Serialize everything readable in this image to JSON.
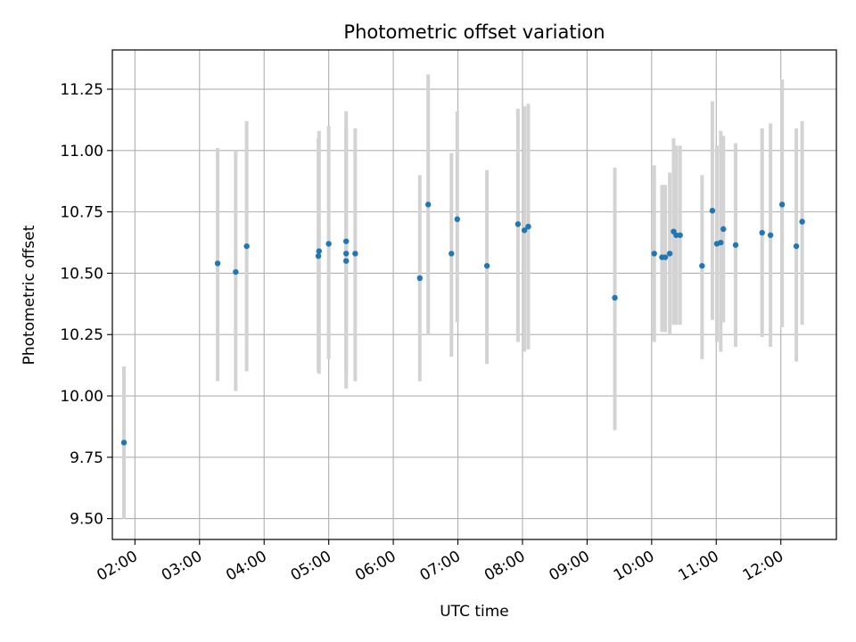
{
  "chart_data": {
    "type": "scatter",
    "title": "Photometric offset variation",
    "xlabel": "UTC time",
    "ylabel": "Photometric offset",
    "xlim": [
      1.65,
      12.86
    ],
    "ylim": [
      9.415,
      11.41
    ],
    "grid": true,
    "x_ticks": [
      {
        "value": 2,
        "label": "02:00"
      },
      {
        "value": 3,
        "label": "03:00"
      },
      {
        "value": 4,
        "label": "04:00"
      },
      {
        "value": 5,
        "label": "05:00"
      },
      {
        "value": 6,
        "label": "06:00"
      },
      {
        "value": 7,
        "label": "07:00"
      },
      {
        "value": 8,
        "label": "08:00"
      },
      {
        "value": 9,
        "label": "09:00"
      },
      {
        "value": 10,
        "label": "10:00"
      },
      {
        "value": 11,
        "label": "11:00"
      },
      {
        "value": 12,
        "label": "12:00"
      }
    ],
    "y_ticks": [
      {
        "value": 9.5,
        "label": "9.50"
      },
      {
        "value": 9.75,
        "label": "9.75"
      },
      {
        "value": 10.0,
        "label": "10.00"
      },
      {
        "value": 10.25,
        "label": "10.25"
      },
      {
        "value": 10.5,
        "label": "10.50"
      },
      {
        "value": 10.75,
        "label": "10.75"
      },
      {
        "value": 11.0,
        "label": "11.00"
      },
      {
        "value": 11.25,
        "label": "11.25"
      }
    ],
    "colors": {
      "point": "#1f77b4",
      "errorbar": "#d3d3d3",
      "grid": "#b0b0b0",
      "axes": "#000000"
    },
    "points": [
      {
        "x": 1.83,
        "y": 9.81,
        "ylow": 9.5,
        "yhigh": 10.12
      },
      {
        "x": 3.28,
        "y": 10.54,
        "ylow": 10.06,
        "yhigh": 11.01
      },
      {
        "x": 3.56,
        "y": 10.505,
        "ylow": 10.02,
        "yhigh": 11.0
      },
      {
        "x": 3.73,
        "y": 10.61,
        "ylow": 10.1,
        "yhigh": 11.12
      },
      {
        "x": 4.84,
        "y": 10.57,
        "ylow": 10.1,
        "yhigh": 11.05
      },
      {
        "x": 4.85,
        "y": 10.59,
        "ylow": 10.09,
        "yhigh": 11.08
      },
      {
        "x": 5.0,
        "y": 10.62,
        "ylow": 10.15,
        "yhigh": 11.1
      },
      {
        "x": 5.27,
        "y": 10.55,
        "ylow": 10.03,
        "yhigh": 11.16
      },
      {
        "x": 5.27,
        "y": 10.58,
        "ylow": 10.08,
        "yhigh": 11.08
      },
      {
        "x": 5.27,
        "y": 10.63,
        "ylow": 10.1,
        "yhigh": 11.1
      },
      {
        "x": 5.41,
        "y": 10.58,
        "ylow": 10.06,
        "yhigh": 11.09
      },
      {
        "x": 6.41,
        "y": 10.48,
        "ylow": 10.06,
        "yhigh": 10.9
      },
      {
        "x": 6.54,
        "y": 10.78,
        "ylow": 10.25,
        "yhigh": 11.31
      },
      {
        "x": 6.9,
        "y": 10.58,
        "ylow": 10.16,
        "yhigh": 10.99
      },
      {
        "x": 6.99,
        "y": 10.72,
        "ylow": 10.3,
        "yhigh": 11.16
      },
      {
        "x": 7.45,
        "y": 10.53,
        "ylow": 10.13,
        "yhigh": 10.92
      },
      {
        "x": 7.93,
        "y": 10.7,
        "ylow": 10.22,
        "yhigh": 11.17
      },
      {
        "x": 8.03,
        "y": 10.675,
        "ylow": 10.18,
        "yhigh": 11.18
      },
      {
        "x": 8.09,
        "y": 10.69,
        "ylow": 10.19,
        "yhigh": 11.19
      },
      {
        "x": 9.43,
        "y": 10.4,
        "ylow": 9.86,
        "yhigh": 10.93
      },
      {
        "x": 10.04,
        "y": 10.58,
        "ylow": 10.22,
        "yhigh": 10.94
      },
      {
        "x": 10.16,
        "y": 10.565,
        "ylow": 10.26,
        "yhigh": 10.86
      },
      {
        "x": 10.21,
        "y": 10.565,
        "ylow": 10.26,
        "yhigh": 10.86
      },
      {
        "x": 10.28,
        "y": 10.58,
        "ylow": 10.25,
        "yhigh": 10.91
      },
      {
        "x": 10.34,
        "y": 10.67,
        "ylow": 10.29,
        "yhigh": 11.05
      },
      {
        "x": 10.38,
        "y": 10.655,
        "ylow": 10.29,
        "yhigh": 11.02
      },
      {
        "x": 10.44,
        "y": 10.655,
        "ylow": 10.29,
        "yhigh": 11.02
      },
      {
        "x": 10.78,
        "y": 10.53,
        "ylow": 10.15,
        "yhigh": 10.9
      },
      {
        "x": 10.94,
        "y": 10.755,
        "ylow": 10.31,
        "yhigh": 11.2
      },
      {
        "x": 11.01,
        "y": 10.62,
        "ylow": 10.22,
        "yhigh": 11.02
      },
      {
        "x": 11.07,
        "y": 10.625,
        "ylow": 10.18,
        "yhigh": 11.08
      },
      {
        "x": 11.11,
        "y": 10.68,
        "ylow": 10.3,
        "yhigh": 11.06
      },
      {
        "x": 11.3,
        "y": 10.615,
        "ylow": 10.2,
        "yhigh": 11.03
      },
      {
        "x": 11.71,
        "y": 10.665,
        "ylow": 10.24,
        "yhigh": 11.09
      },
      {
        "x": 11.84,
        "y": 10.655,
        "ylow": 10.2,
        "yhigh": 11.11
      },
      {
        "x": 12.02,
        "y": 10.78,
        "ylow": 10.28,
        "yhigh": 11.29
      },
      {
        "x": 12.24,
        "y": 10.61,
        "ylow": 10.14,
        "yhigh": 11.09
      },
      {
        "x": 12.33,
        "y": 10.71,
        "ylow": 10.29,
        "yhigh": 11.12
      }
    ]
  }
}
